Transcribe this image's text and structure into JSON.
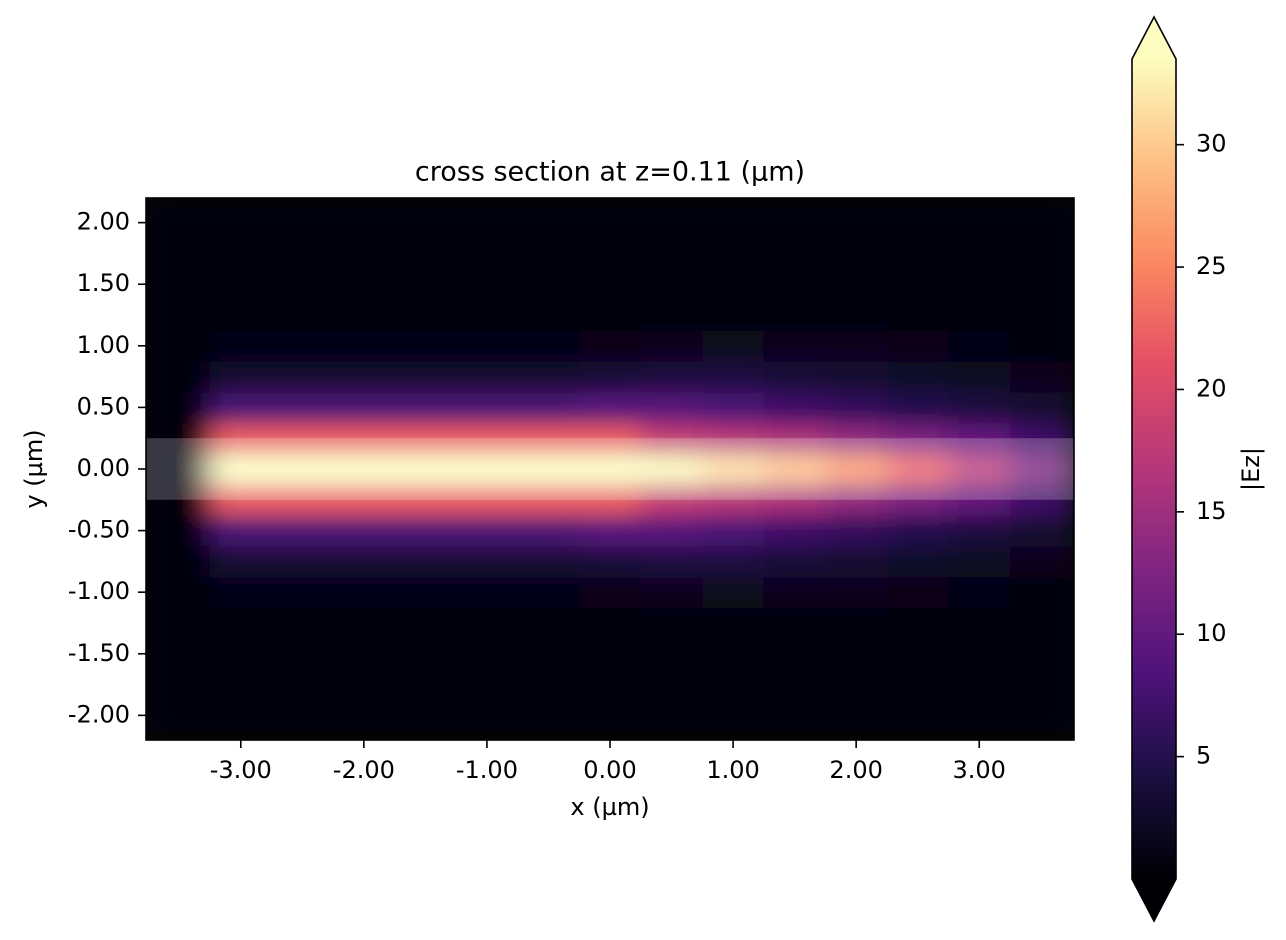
{
  "chart_data": {
    "type": "heatmap",
    "title": "cross section at z=0.11 (µm)",
    "x_label": "x (µm)",
    "y_label": "y (µm)",
    "colormap": "magma",
    "xlim": [
      -3.77,
      3.77
    ],
    "ylim": [
      -2.2,
      2.2
    ],
    "xticks": [
      {
        "value": -3,
        "label": "-3.00"
      },
      {
        "value": -2,
        "label": "-2.00"
      },
      {
        "value": -1,
        "label": "-1.00"
      },
      {
        "value": 0,
        "label": "0.00"
      },
      {
        "value": 1,
        "label": "1.00"
      },
      {
        "value": 2,
        "label": "2.00"
      },
      {
        "value": 3,
        "label": "3.00"
      }
    ],
    "yticks": [
      {
        "value": -2,
        "label": "-2.00"
      },
      {
        "value": -1.5,
        "label": "-1.50"
      },
      {
        "value": -1,
        "label": "-1.00"
      },
      {
        "value": -0.5,
        "label": "-0.50"
      },
      {
        "value": 0,
        "label": "0.00"
      },
      {
        "value": 0.5,
        "label": "0.50"
      },
      {
        "value": 1,
        "label": "1.00"
      },
      {
        "value": 1.5,
        "label": "1.50"
      },
      {
        "value": 2,
        "label": "2.00"
      }
    ],
    "x": [
      -3.5,
      -3,
      -2.5,
      -2,
      -1.5,
      -1,
      -0.5,
      0,
      0.5,
      1,
      1.5,
      2,
      2.5,
      3,
      3.5
    ],
    "y": [
      -2,
      -1.75,
      -1.5,
      -1.25,
      -1,
      -0.75,
      -0.5,
      -0.25,
      0,
      0.25,
      0.5,
      0.75,
      1,
      1.25,
      1.5,
      1.75,
      2
    ],
    "z": [
      [
        0.3,
        0.3,
        0.3,
        0.3,
        0.3,
        0.3,
        0.3,
        0.3,
        0.3,
        0.3,
        0.3,
        0.3,
        0.3,
        0.3,
        0.3
      ],
      [
        0.3,
        0.3,
        0.3,
        0.3,
        0.3,
        0.3,
        0.3,
        0.3,
        0.3,
        0.3,
        0.3,
        0.3,
        0.3,
        0.3,
        0.3
      ],
      [
        0.3,
        0.3,
        0.3,
        0.3,
        0.3,
        0.3,
        0.3,
        0.3,
        0.3,
        0.3,
        0.3,
        0.3,
        0.3,
        0.3,
        0.3
      ],
      [
        0.3,
        0.5,
        0.5,
        0.5,
        0.5,
        0.5,
        0.5,
        0.6,
        0.8,
        0.9,
        0.9,
        0.8,
        0.6,
        0.5,
        0.4
      ],
      [
        0.3,
        1,
        1,
        1,
        1,
        1,
        1,
        1.2,
        1.5,
        1.8,
        1.7,
        1.5,
        1.2,
        1,
        0.8
      ],
      [
        0.3,
        3,
        3,
        3,
        3,
        3,
        3,
        3.5,
        4,
        4,
        3.5,
        3,
        2.5,
        2,
        1.5
      ],
      [
        0.3,
        8,
        8,
        8,
        8,
        8,
        8,
        9,
        9,
        8,
        7,
        6,
        5,
        4,
        3
      ],
      [
        0.3,
        22,
        22,
        22,
        22,
        22,
        22,
        22,
        18,
        17,
        16,
        14,
        12,
        10,
        7
      ],
      [
        0.3,
        33.5,
        33.5,
        33.5,
        33.5,
        33.5,
        33.5,
        33.5,
        33,
        31,
        29,
        26,
        22,
        17,
        12
      ],
      [
        0.3,
        22,
        22,
        22,
        22,
        22,
        22,
        22,
        18,
        17,
        16,
        14,
        12,
        10,
        7
      ],
      [
        0.3,
        8,
        8,
        8,
        8,
        8,
        8,
        9,
        9,
        8,
        7,
        6,
        5,
        4,
        3
      ],
      [
        0.3,
        3,
        3,
        3,
        3,
        3,
        3,
        3.5,
        4,
        4,
        3.5,
        3,
        2.5,
        2,
        1.5
      ],
      [
        0.3,
        1,
        1,
        1,
        1,
        1,
        1,
        1.2,
        1.5,
        1.8,
        1.7,
        1.5,
        1.2,
        1,
        0.8
      ],
      [
        0.3,
        0.5,
        0.5,
        0.5,
        0.5,
        0.5,
        0.5,
        0.6,
        0.8,
        0.9,
        0.9,
        0.8,
        0.6,
        0.5,
        0.4
      ],
      [
        0.3,
        0.3,
        0.3,
        0.3,
        0.3,
        0.3,
        0.3,
        0.3,
        0.3,
        0.3,
        0.3,
        0.3,
        0.3,
        0.3,
        0.3
      ],
      [
        0.3,
        0.3,
        0.3,
        0.3,
        0.3,
        0.3,
        0.3,
        0.3,
        0.3,
        0.3,
        0.3,
        0.3,
        0.3,
        0.3,
        0.3
      ],
      [
        0.3,
        0.3,
        0.3,
        0.3,
        0.3,
        0.3,
        0.3,
        0.3,
        0.3,
        0.3,
        0.3,
        0.3,
        0.3,
        0.3,
        0.3
      ]
    ],
    "structure_y": [
      -0.25,
      0.25
    ],
    "colorbar": {
      "label": "|Ez|",
      "clim": [
        0,
        33.5
      ],
      "ticks": [
        5,
        10,
        15,
        20,
        25,
        30
      ],
      "extend": "both"
    }
  }
}
